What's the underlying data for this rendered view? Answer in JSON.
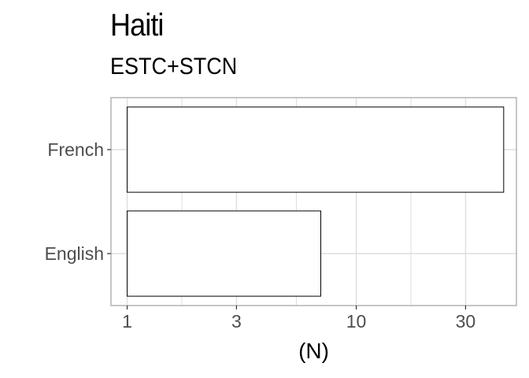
{
  "chart_data": {
    "type": "bar",
    "orientation": "horizontal",
    "title": "Haiti",
    "subtitle": "ESTC+STCN",
    "xlabel": "(N)",
    "ylabel": "",
    "x_scale": "log10",
    "xlim": [
      0.85,
      50
    ],
    "x_ticks": [
      1,
      3,
      10,
      30
    ],
    "x_tick_labels": [
      "1",
      "3",
      "10",
      "30"
    ],
    "categories": [
      "French",
      "English"
    ],
    "values": [
      44,
      7
    ],
    "grid": true,
    "bar_fill": "#ffffff",
    "bar_stroke": "#000000",
    "panel_border": "#b3b3b3",
    "grid_color": "#dedede"
  }
}
